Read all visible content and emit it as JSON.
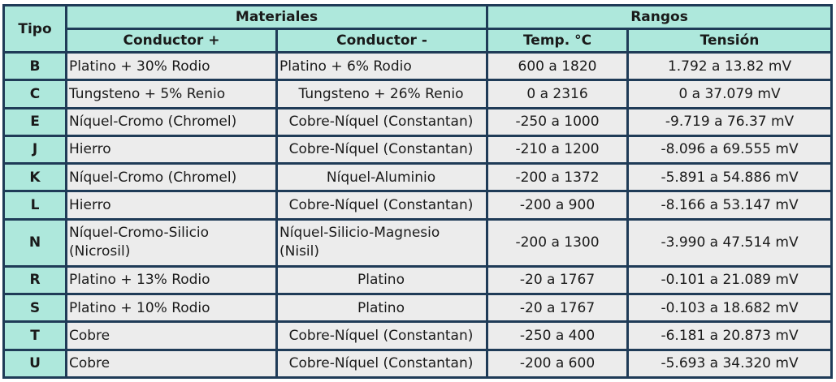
{
  "headers": {
    "tipo": "Tipo",
    "materiales": "Materiales",
    "rangos": "Rangos",
    "conductor_pos": "Conductor +",
    "conductor_neg": "Conductor -",
    "temp": "Temp. °C",
    "tension": "Tensión"
  },
  "rows": [
    {
      "tipo": "B",
      "pos": "Platino + 30% Rodio",
      "neg": "Platino + 6% Rodio",
      "temp": "600 a 1820",
      "tension": "1.792 a 13.82 mV"
    },
    {
      "tipo": "C",
      "pos": "Tungsteno + 5% Renio",
      "neg": "Tungsteno + 26% Renio",
      "temp": "0 a 2316",
      "tension": "0 a 37.079 mV"
    },
    {
      "tipo": "E",
      "pos": "Níquel-Cromo (Chromel)",
      "neg": "Cobre-Níquel (Constantan)",
      "temp": "-250 a 1000",
      "tension": "-9.719 a 76.37 mV"
    },
    {
      "tipo": "J",
      "pos": "Hierro",
      "neg": "Cobre-Níquel (Constantan)",
      "temp": "-210 a 1200",
      "tension": "-8.096 a 69.555 mV"
    },
    {
      "tipo": "K",
      "pos": "Níquel-Cromo (Chromel)",
      "neg": "Níquel-Aluminio",
      "temp": "-200 a 1372",
      "tension": "-5.891 a 54.886 mV"
    },
    {
      "tipo": "L",
      "pos": "Hierro",
      "neg": "Cobre-Níquel (Constantan)",
      "temp": "-200 a 900",
      "tension": "-8.166 a 53.147 mV"
    },
    {
      "tipo": "N",
      "pos": "Níquel-Cromo-Silicio (Nicrosil)",
      "neg": "Níquel-Silicio-Magnesio (Nisil)",
      "temp": "-200 a 1300",
      "tension": "-3.990 a 47.514 mV"
    },
    {
      "tipo": "R",
      "pos": "Platino + 13% Rodio",
      "neg": "Platino",
      "temp": "-20 a 1767",
      "tension": "-0.101 a 21.089 mV"
    },
    {
      "tipo": "S",
      "pos": "Platino + 10% Rodio",
      "neg": "Platino",
      "temp": "-20 a 1767",
      "tension": "-0.103 a 18.682 mV"
    },
    {
      "tipo": "T",
      "pos": "Cobre",
      "neg": "Cobre-Níquel (Constantan)",
      "temp": "-250 a 400",
      "tension": "-6.181 a 20.873 mV"
    },
    {
      "tipo": "U",
      "pos": "Cobre",
      "neg": "Cobre-Níquel (Constantan)",
      "temp": "-200 a 600",
      "tension": "-5.693 a 34.320 mV"
    }
  ]
}
